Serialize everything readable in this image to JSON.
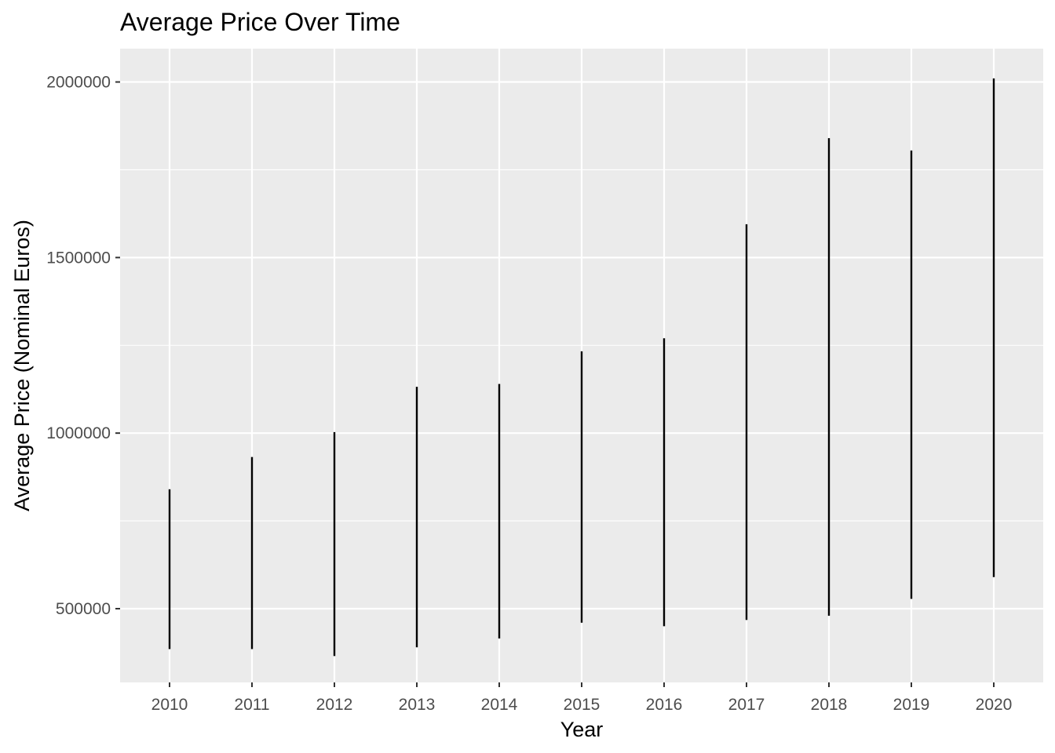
{
  "chart_data": {
    "type": "linerange",
    "title": "Average Price Over Time",
    "xlabel": "Year",
    "ylabel": "Average Price (Nominal Euros)",
    "categories": [
      "2010",
      "2011",
      "2012",
      "2013",
      "2014",
      "2015",
      "2016",
      "2017",
      "2018",
      "2019",
      "2020"
    ],
    "ranges": [
      {
        "x": "2010",
        "low": 385000,
        "high": 840000
      },
      {
        "x": "2011",
        "low": 385000,
        "high": 932000
      },
      {
        "x": "2012",
        "low": 365000,
        "high": 1003000
      },
      {
        "x": "2013",
        "low": 390000,
        "high": 1132000
      },
      {
        "x": "2014",
        "low": 415000,
        "high": 1140000
      },
      {
        "x": "2015",
        "low": 460000,
        "high": 1233000
      },
      {
        "x": "2016",
        "low": 450000,
        "high": 1270000
      },
      {
        "x": "2017",
        "low": 468000,
        "high": 1595000
      },
      {
        "x": "2018",
        "low": 480000,
        "high": 1840000
      },
      {
        "x": "2019",
        "low": 528000,
        "high": 1805000
      },
      {
        "x": "2020",
        "low": 590000,
        "high": 2010000
      }
    ],
    "yticks": [
      500000,
      1000000,
      1500000,
      2000000
    ],
    "ytick_labels": [
      "500000",
      "1000000",
      "1500000",
      "2000000"
    ],
    "ylim": [
      290000,
      2095000
    ],
    "grid": true,
    "legend": "none",
    "colors": {
      "panel": "#ebebeb",
      "grid": "#ffffff",
      "line": "#000000",
      "tick_text": "#4d4d4d"
    }
  }
}
